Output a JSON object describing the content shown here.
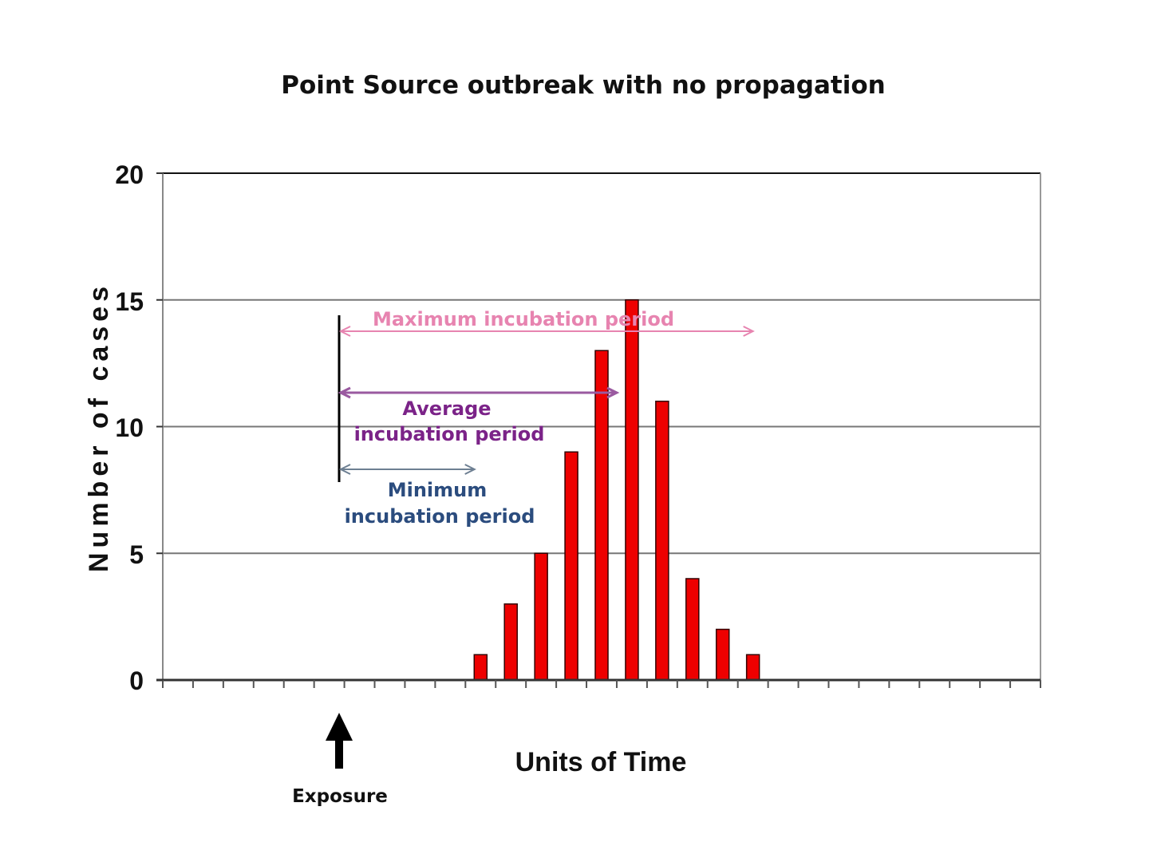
{
  "chart_data": {
    "type": "bar",
    "title": "Point Source outbreak with no propagation",
    "xlabel": "Units of Time",
    "ylabel": "Number of cases",
    "ylim": [
      0,
      20
    ],
    "yticks": [
      "0",
      "5",
      "10",
      "15",
      "20"
    ],
    "grid": true,
    "bar_color": "#ee0000",
    "x_bins": 29,
    "values": [
      0,
      0,
      0,
      0,
      0,
      0,
      0,
      0,
      0,
      0,
      1,
      3,
      5,
      9,
      13,
      15,
      11,
      4,
      2,
      1,
      0,
      0,
      0,
      0,
      0,
      0,
      0,
      0,
      0
    ],
    "annotations": {
      "exposure": {
        "label": "Exposure",
        "bin": 6
      },
      "maximum": {
        "label": "Maximum incubation period",
        "color": "#e784b0",
        "to_bin": 19.5
      },
      "average": {
        "label_line1": "Average",
        "label_line2": "incubation period",
        "color": "#7b2388",
        "to_bin": 15
      },
      "minimum": {
        "label_line1": "Minimum",
        "label_line2": "incubation period",
        "color": "#2b4c7e",
        "to_bin": 10.3
      }
    }
  }
}
